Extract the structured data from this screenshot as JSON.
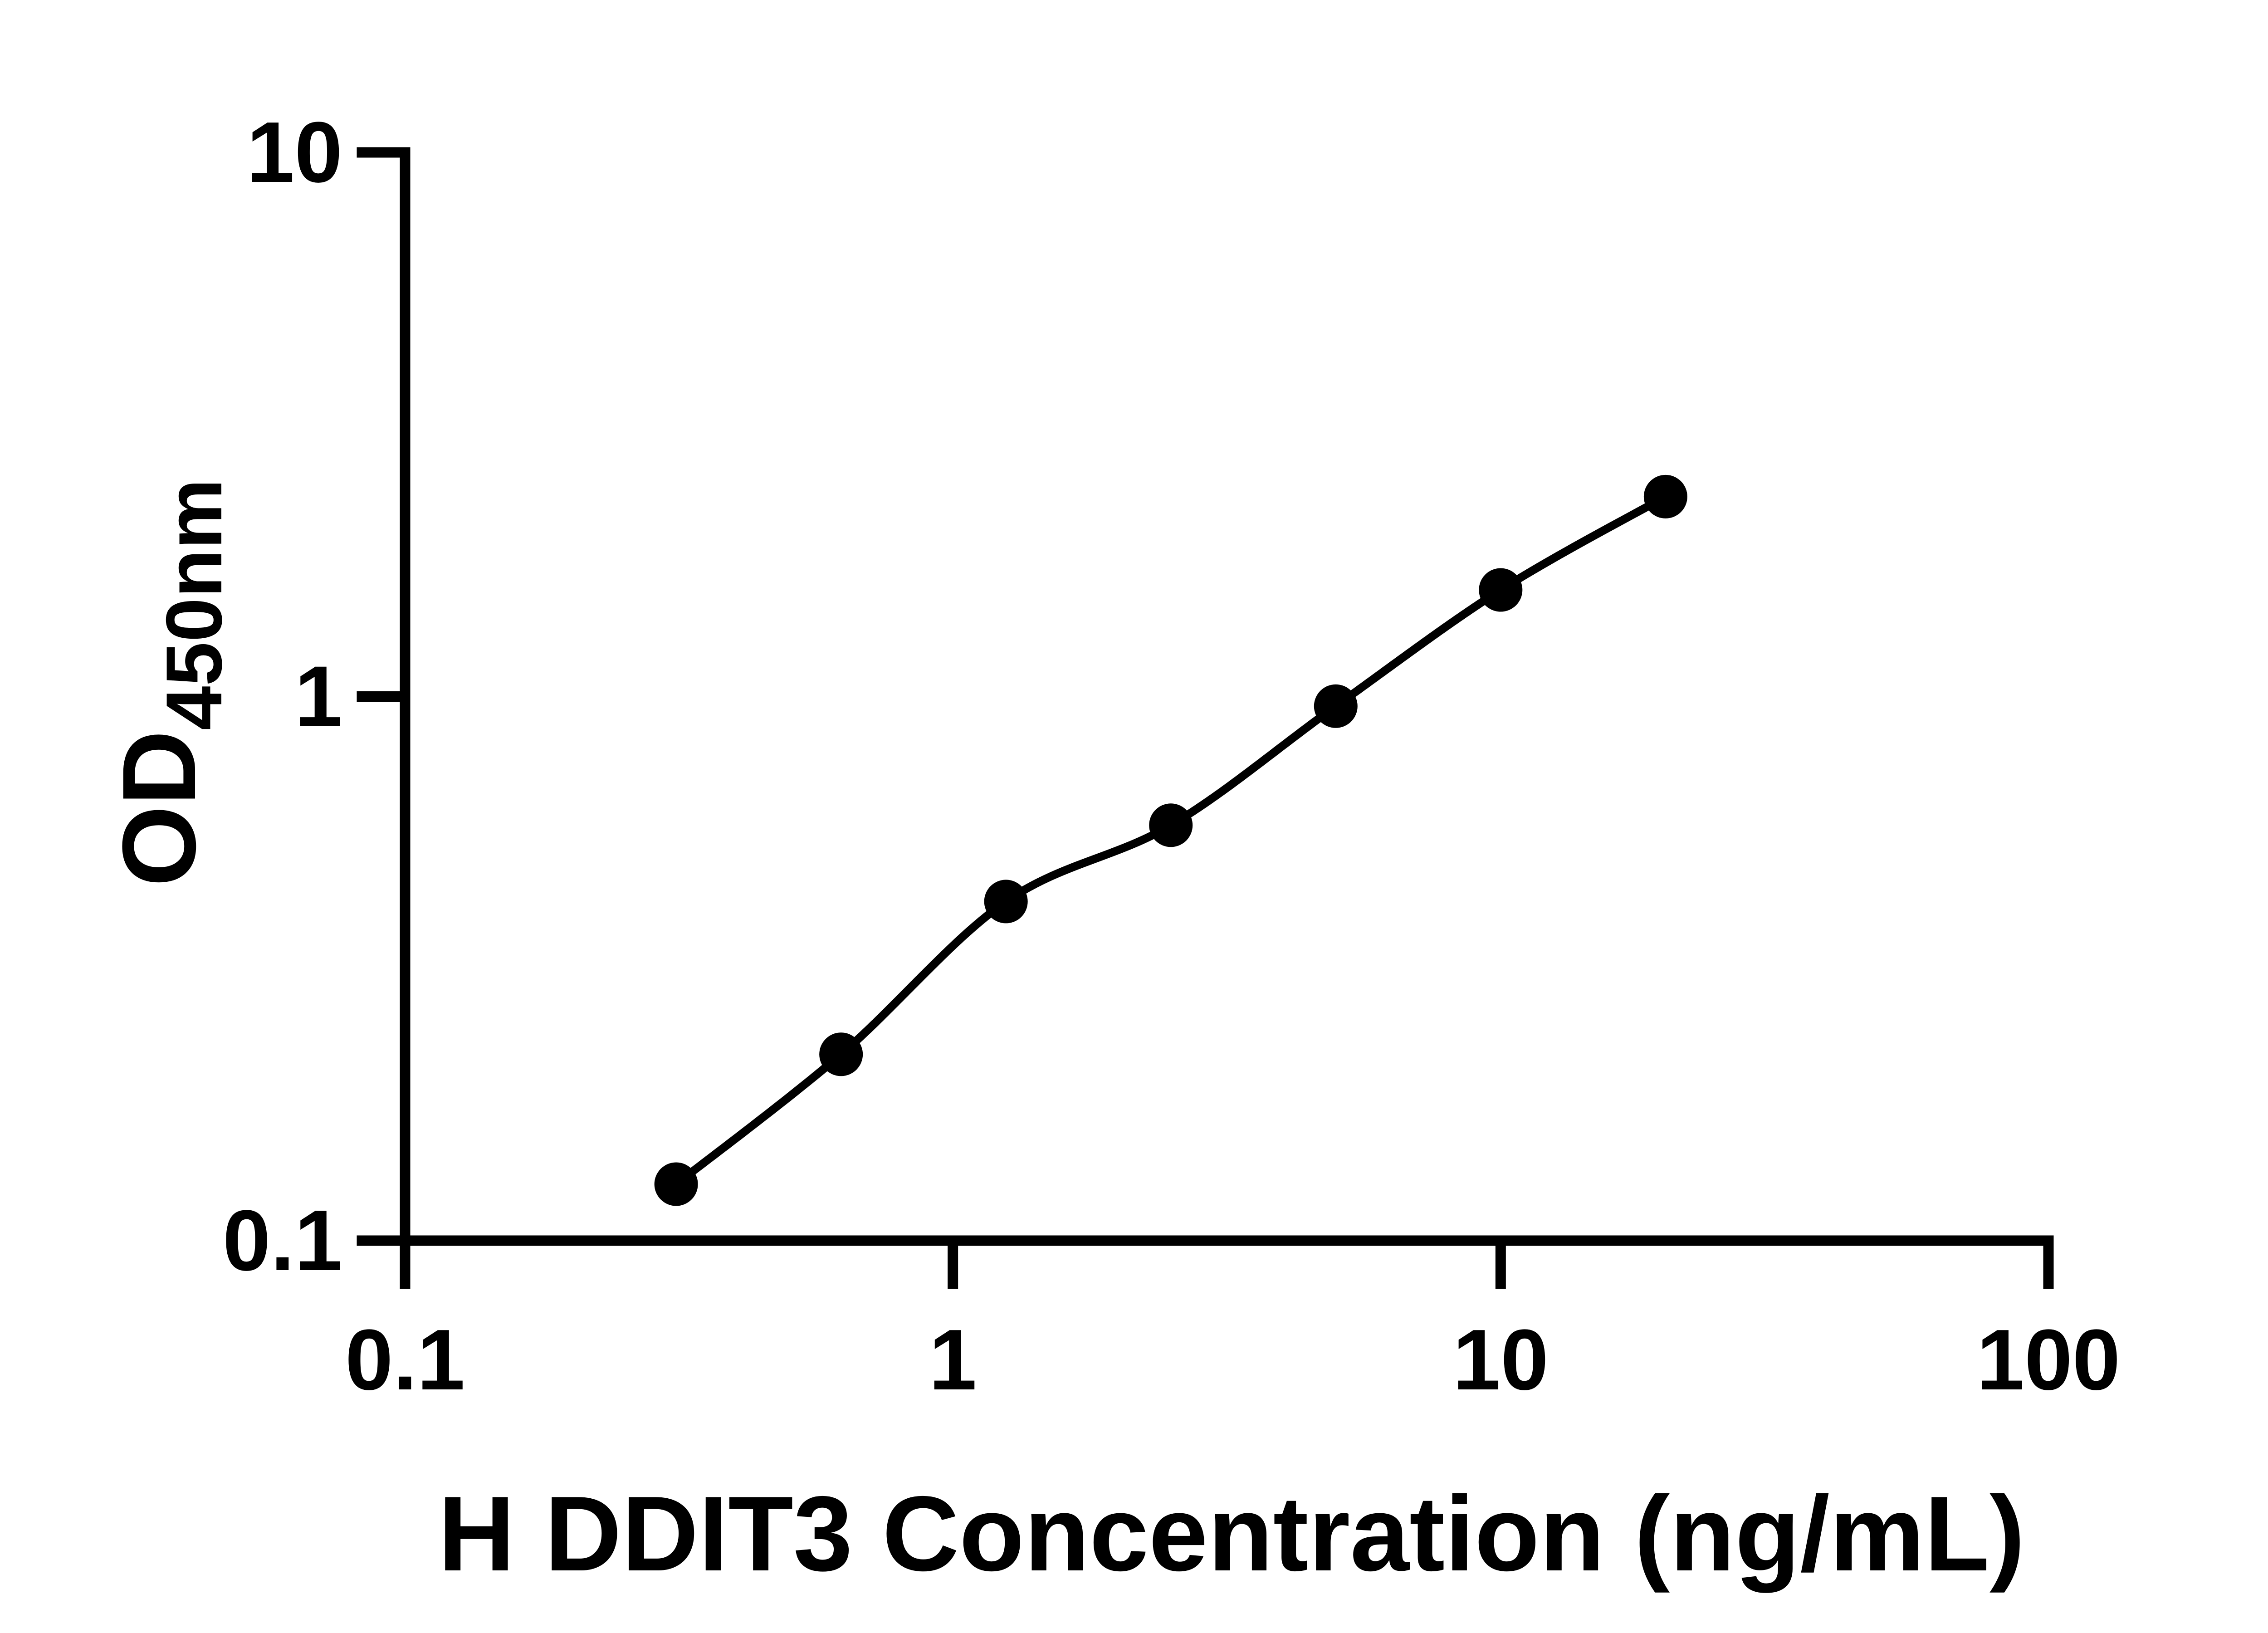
{
  "chart_data": {
    "type": "line",
    "title": "",
    "xlabel": "H DDIT3 Concentration (ng/mL)",
    "ylabel_main": "OD",
    "ylabel_sub": "450nm",
    "x": [
      0.3125,
      0.625,
      1.25,
      2.5,
      5,
      10,
      20
    ],
    "y": [
      0.127,
      0.22,
      0.42,
      0.58,
      0.96,
      1.57,
      2.33
    ],
    "xscale": "log",
    "yscale": "log",
    "xlim": [
      0.1,
      100
    ],
    "ylim": [
      0.1,
      10
    ],
    "x_ticks": [
      0.1,
      1,
      10,
      100
    ],
    "x_tick_labels": [
      "0.1",
      "1",
      "10",
      "100"
    ],
    "y_ticks": [
      0.1,
      1,
      10
    ],
    "y_tick_labels": [
      "0.1",
      "1",
      "10"
    ],
    "grid": false,
    "legend": "none",
    "line_color": "#000000",
    "marker_color": "#000000",
    "axis_color": "#000000",
    "background_color": "#ffffff"
  }
}
